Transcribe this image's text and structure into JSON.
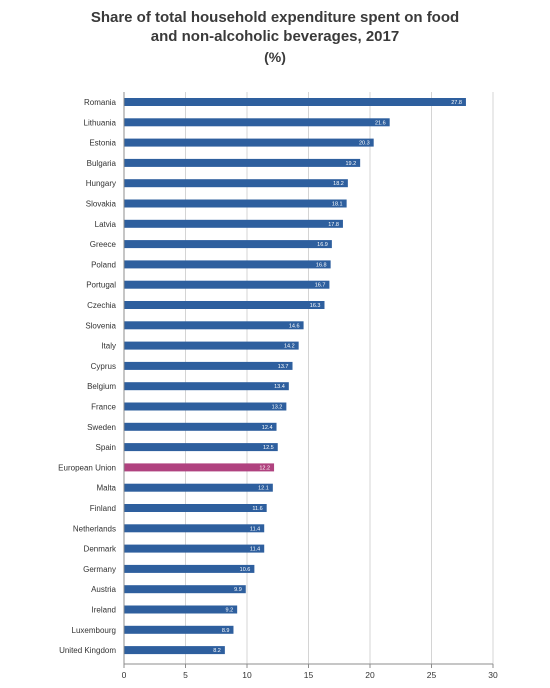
{
  "chart_data": {
    "type": "bar",
    "orientation": "horizontal",
    "title": "Share of total household expenditure spent on food and non-alcoholic beverages, 2017",
    "subtitle": "(%)",
    "categories": [
      "Romania",
      "Lithuania",
      "Estonia",
      "Bulgaria",
      "Hungary",
      "Slovakia",
      "Latvia",
      "Greece",
      "Poland",
      "Portugal",
      "Czechia",
      "Slovenia",
      "Italy",
      "Cyprus",
      "Belgium",
      "France",
      "Sweden",
      "Spain",
      "European Union",
      "Malta",
      "Finland",
      "Netherlands",
      "Denmark",
      "Germany",
      "Austria",
      "Ireland",
      "Luxembourg",
      "United Kingdom"
    ],
    "values": [
      27.8,
      21.6,
      20.3,
      19.2,
      18.2,
      18.1,
      17.8,
      16.9,
      16.8,
      16.7,
      16.3,
      14.6,
      14.2,
      13.7,
      13.4,
      13.2,
      12.4,
      12.5,
      12.2,
      12.1,
      11.6,
      11.4,
      11.4,
      10.6,
      9.9,
      9.2,
      8.9,
      8.2
    ],
    "value_labels": [
      "27.8",
      "21.6",
      "20.3",
      "19.2",
      "18.2",
      "18.1",
      "17.8",
      "16.9",
      "16.8",
      "16.7",
      "16.3",
      "14.6",
      "14.2",
      "13.7",
      "13.4",
      "13.2",
      "12.4",
      "12.5",
      "12.2",
      "12.1",
      "11.6",
      "11.4",
      "11.4",
      "10.6",
      "9.9",
      "9.2",
      "8.9",
      "8.2"
    ],
    "highlight_category": "European Union",
    "xlim": [
      0,
      30
    ],
    "xticks": [
      0,
      5,
      10,
      15,
      20,
      25,
      30
    ],
    "grid": "vertical",
    "xlabel": "",
    "ylabel": "",
    "colors": {
      "bar": "#2e5f9e",
      "highlight": "#b0427f",
      "grid": "#d4d4d4",
      "axis": "#8c8c8c"
    }
  }
}
